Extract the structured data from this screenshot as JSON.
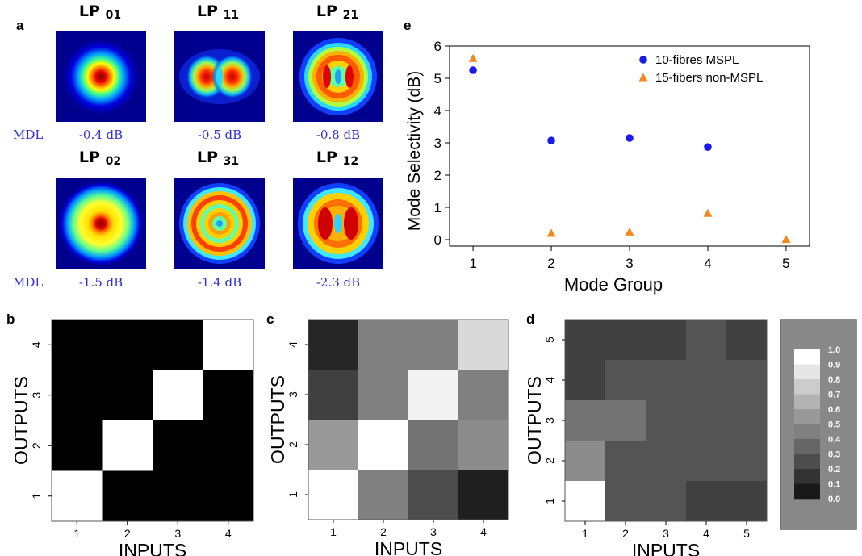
{
  "panel_labels": {
    "a": "a",
    "b": "b",
    "c": "c",
    "d": "d",
    "e": "e"
  },
  "modes": [
    {
      "name": "LP",
      "sub": "01",
      "mdl": "-0.4 dB"
    },
    {
      "name": "LP",
      "sub": "11",
      "mdl": "-0.5 dB"
    },
    {
      "name": "LP",
      "sub": "21",
      "mdl": "-0.8 dB"
    },
    {
      "name": "LP",
      "sub": "02",
      "mdl": "-1.5 dB"
    },
    {
      "name": "LP",
      "sub": "31",
      "mdl": "-1.4 dB"
    },
    {
      "name": "LP",
      "sub": "12",
      "mdl": "-2.3 dB"
    }
  ],
  "mdl_label": "MDL",
  "colors": {
    "blue_series": "#1a1aef",
    "orange_series": "#f2881e",
    "mdl_text": "#2f2fd6"
  },
  "chart_data": [
    {
      "type": "scatter",
      "panel": "e",
      "title": "",
      "xlabel": "Mode Group",
      "ylabel": "Mode Selectivity (dB)",
      "xlim": [
        0.7,
        5.3
      ],
      "ylim": [
        -0.2,
        6
      ],
      "xticks": [
        1,
        2,
        3,
        4,
        5
      ],
      "yticks": [
        0,
        1,
        2,
        3,
        4,
        5,
        6
      ],
      "legend_position": "top-right",
      "series": [
        {
          "name": "10-fibres MSPL",
          "marker": "circle",
          "color": "#1a1aef",
          "x": [
            1,
            2,
            3,
            4
          ],
          "y": [
            5.25,
            3.07,
            3.15,
            2.87
          ]
        },
        {
          "name": "15-fibers non-MSPL",
          "marker": "triangle",
          "color": "#f2881e",
          "x": [
            1,
            2,
            3,
            4,
            5
          ],
          "y": [
            5.62,
            0.2,
            0.24,
            0.82,
            0.01
          ]
        }
      ]
    },
    {
      "type": "heatmap",
      "panel": "b",
      "xlabel": "INPUTS",
      "ylabel": "OUTPUTS",
      "x_ticks": [
        "1",
        "2",
        "3",
        "4"
      ],
      "y_ticks": [
        "1",
        "2",
        "3",
        "4"
      ],
      "values_top_to_bottom": [
        [
          0,
          0,
          0,
          1
        ],
        [
          0,
          0,
          1,
          0
        ],
        [
          0,
          1,
          0,
          0
        ],
        [
          1,
          0,
          0,
          0
        ]
      ]
    },
    {
      "type": "heatmap",
      "panel": "c",
      "xlabel": "INPUTS",
      "ylabel": "OUTPUTS",
      "x_ticks": [
        "1",
        "2",
        "3",
        "4"
      ],
      "y_ticks": [
        "1",
        "2",
        "3",
        "4"
      ],
      "values_top_to_bottom": [
        [
          0.15,
          0.5,
          0.5,
          0.85
        ],
        [
          0.25,
          0.5,
          0.95,
          0.5
        ],
        [
          0.6,
          1.0,
          0.45,
          0.55
        ],
        [
          1.0,
          0.5,
          0.3,
          0.12
        ]
      ]
    },
    {
      "type": "heatmap",
      "panel": "d",
      "xlabel": "INPUTS",
      "ylabel": "OUTPUTS",
      "x_ticks": [
        "1",
        "2",
        "3",
        "4",
        "5"
      ],
      "y_ticks": [
        "1",
        "2",
        "3",
        "4",
        "5"
      ],
      "values_top_to_bottom": [
        [
          0.25,
          0.25,
          0.25,
          0.33,
          0.25
        ],
        [
          0.25,
          0.33,
          0.33,
          0.33,
          0.33
        ],
        [
          0.45,
          0.45,
          0.33,
          0.33,
          0.33
        ],
        [
          0.55,
          0.33,
          0.33,
          0.33,
          0.33
        ],
        [
          1.0,
          0.33,
          0.33,
          0.25,
          0.25
        ]
      ]
    }
  ],
  "colorbar": {
    "ticks": [
      "1.0",
      "0.9",
      "0.8",
      "0.7",
      "0.6",
      "0.5",
      "0.4",
      "0.3",
      "0.2",
      "0.1",
      "0.0"
    ]
  }
}
